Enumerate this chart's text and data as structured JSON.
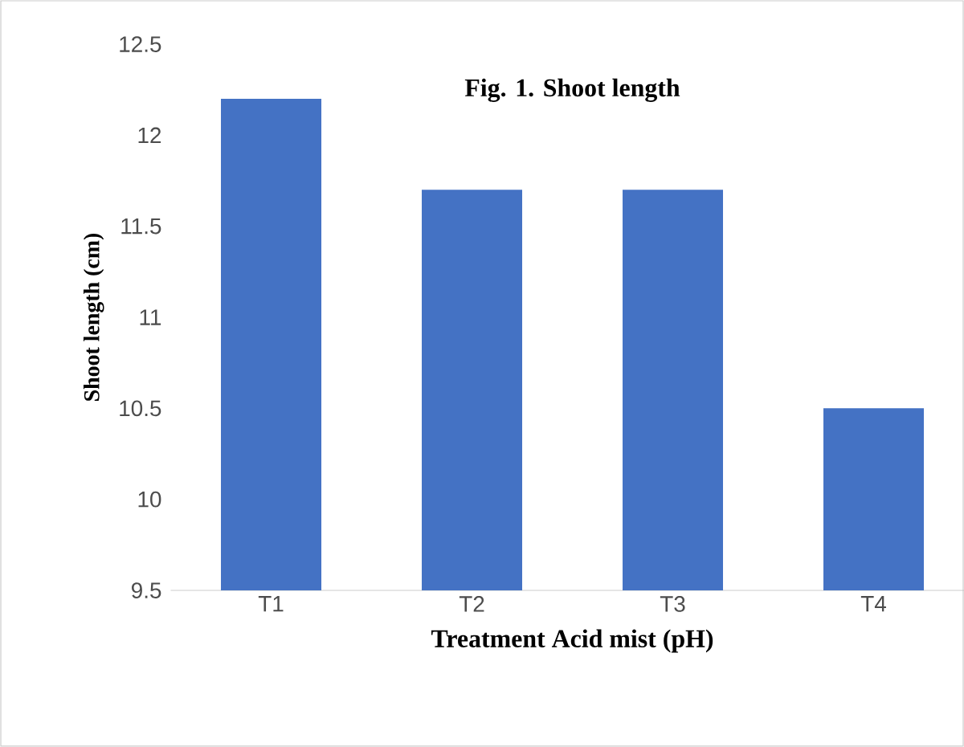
{
  "chart_data": {
    "type": "bar",
    "title": "Fig. 1. Shoot length",
    "xlabel": "Treatment Acid mist (pH)",
    "ylabel": "Shoot length (cm)",
    "categories": [
      "T1",
      "T2",
      "T3",
      "T4"
    ],
    "values": [
      12.2,
      11.7,
      11.7,
      10.5
    ],
    "color": "#4472c4",
    "ylim": [
      9.5,
      12.5
    ],
    "yticks": [
      9.5,
      10,
      10.5,
      11,
      11.5,
      12,
      12.5
    ],
    "grid": false
  }
}
